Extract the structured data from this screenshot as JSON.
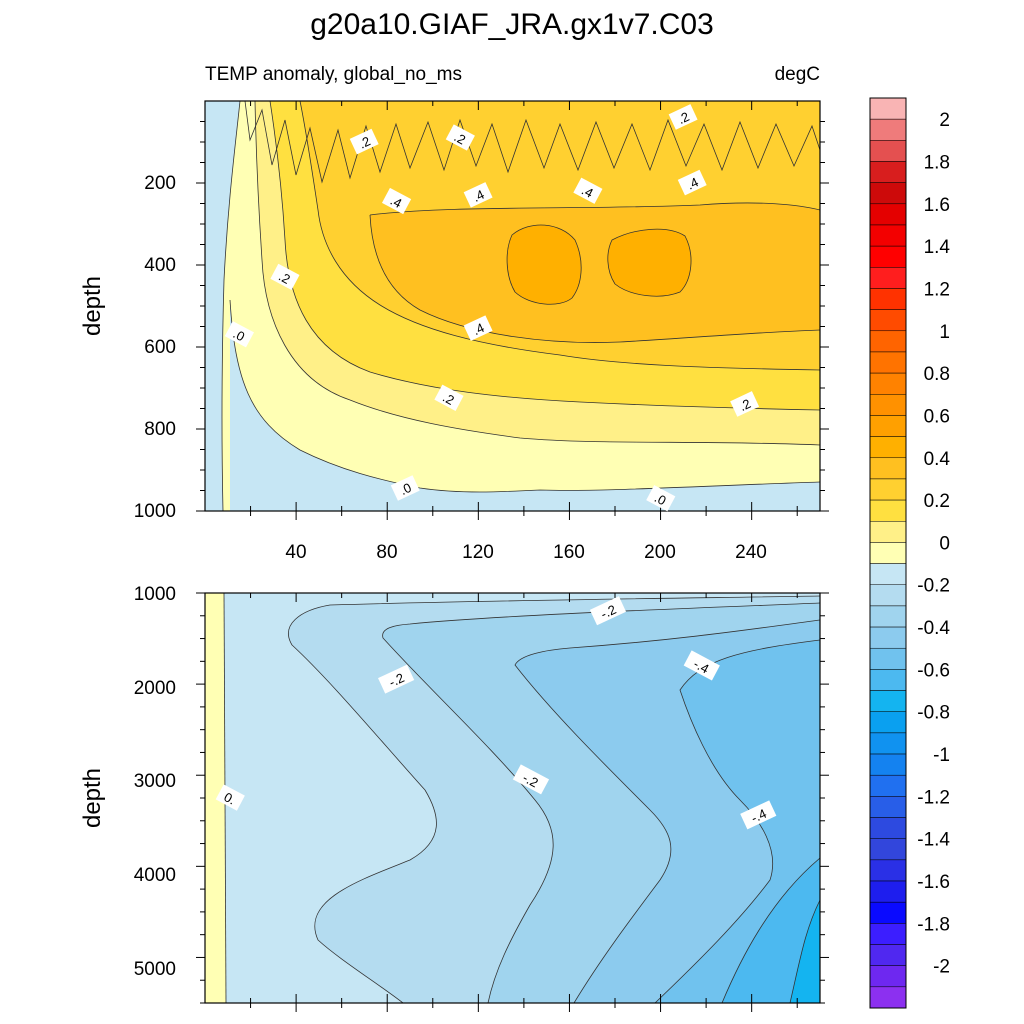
{
  "chart_data": {
    "title": "g20a10.GIAF_JRA.gx1v7.C03",
    "variable_label": "TEMP anomaly, global_no_ms",
    "units_label": "degC",
    "type": "contour",
    "x_range": [
      0,
      270
    ],
    "panels": [
      {
        "name": "upper",
        "ylabel": "depth",
        "y_range": [
          0,
          1000
        ],
        "y_ticks": [
          "200",
          "400",
          "600",
          "800",
          "1000"
        ],
        "x_ticks": [
          "40",
          "80",
          "120",
          "160",
          "200",
          "240"
        ],
        "contour_labels": [
          {
            "text": ".2",
            "x": 70,
            "y": 100
          },
          {
            "text": ".2",
            "x": 112,
            "y": 90
          },
          {
            "text": ".2",
            "x": 210,
            "y": 40
          },
          {
            "text": ".4",
            "x": 84,
            "y": 245
          },
          {
            "text": ".4",
            "x": 120,
            "y": 230
          },
          {
            "text": ".4",
            "x": 168,
            "y": 220
          },
          {
            "text": ".4",
            "x": 214,
            "y": 200
          },
          {
            "text": ".2",
            "x": 35,
            "y": 430
          },
          {
            "text": ".4",
            "x": 120,
            "y": 555
          },
          {
            "text": ".2",
            "x": 107,
            "y": 725
          },
          {
            "text": ".2",
            "x": 237,
            "y": 740
          },
          {
            "text": ".0",
            "x": 15,
            "y": 570
          },
          {
            "text": ".0",
            "x": 88,
            "y": 945
          },
          {
            "text": ".0",
            "x": 200,
            "y": 970
          }
        ]
      },
      {
        "name": "lower",
        "ylabel": "depth",
        "y_range": [
          1000,
          5500
        ],
        "y_ticks": [
          "1000",
          "2000",
          "3000",
          "4000",
          "5000"
        ],
        "contour_labels": [
          {
            "text": "-.2",
            "x": 177,
            "y": 1200
          },
          {
            "text": "-.4",
            "x": 218,
            "y": 1800
          },
          {
            "text": "-.2",
            "x": 84,
            "y": 1950
          },
          {
            "text": "-.2",
            "x": 143,
            "y": 3050
          },
          {
            "text": "-.4",
            "x": 243,
            "y": 3440
          },
          {
            "text": "0.",
            "x": 11,
            "y": 3250
          }
        ]
      }
    ],
    "colorbar": {
      "levels": [
        2.2,
        2,
        1.9,
        1.8,
        1.7,
        1.6,
        1.5,
        1.4,
        1.3,
        1.2,
        1.1,
        1,
        0.9,
        0.8,
        0.7,
        0.6,
        0.5,
        0.4,
        0.3,
        0.2,
        0.1,
        0,
        -0.1,
        -0.2,
        -0.3,
        -0.4,
        -0.5,
        -0.6,
        -0.7,
        -0.8,
        -0.9,
        -1,
        -1.1,
        -1.2,
        -1.3,
        -1.4,
        -1.5,
        -1.6,
        -1.7,
        -1.8,
        -1.9,
        -2,
        -2.1
      ],
      "colors": [
        "#f9b4b4",
        "#ef7b7b",
        "#e45050",
        "#d81e1e",
        "#cd0a0a",
        "#e40000",
        "#f30000",
        "#ff0000",
        "#ff1e1e",
        "#ff3200",
        "#ff4b00",
        "#ff6400",
        "#ff7300",
        "#ff8200",
        "#ff9100",
        "#ffa000",
        "#ffb000",
        "#ffc020",
        "#ffd030",
        "#ffe040",
        "#fff088",
        "#ffffb4",
        "#c6e6f4",
        "#b4dcf0",
        "#a0d4ee",
        "#8ccbee",
        "#70c2ee",
        "#4cb9f0",
        "#14b4f0",
        "#0aa0f0",
        "#1092f0",
        "#1482f0",
        "#2070f0",
        "#285ee8",
        "#2d4ae0",
        "#3246dc",
        "#2a30e6",
        "#1e1eee",
        "#0a0aff",
        "#3c1eff",
        "#5028f0",
        "#6e28f0",
        "#8c30f0"
      ],
      "tick_labels": [
        "2",
        "1.8",
        "1.6",
        "1.4",
        "1.2",
        "1",
        "0.8",
        "0.6",
        "0.4",
        "0.2",
        "0",
        "-0.2",
        "-0.4",
        "-0.6",
        "-0.8",
        "-1",
        "-1.2",
        "-1.4",
        "-1.6",
        "-1.8",
        "-2"
      ]
    }
  }
}
